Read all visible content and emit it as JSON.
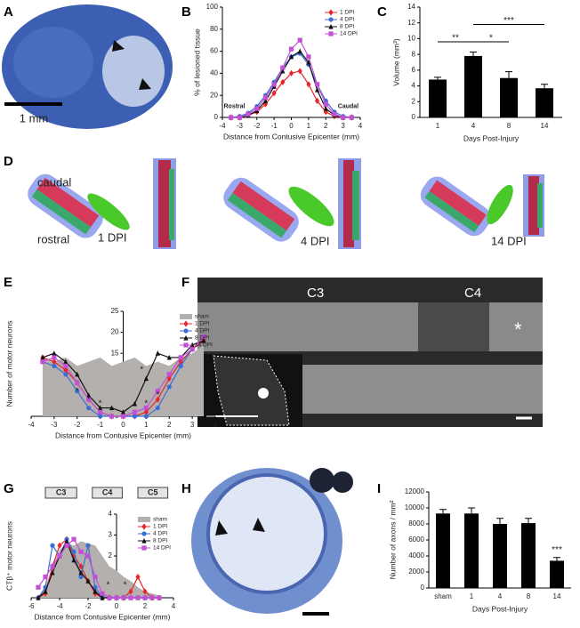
{
  "panels": [
    "A",
    "B",
    "C",
    "D",
    "E",
    "F",
    "G",
    "H",
    "I"
  ],
  "images": {
    "A": {
      "scale_bar": "1 mm"
    },
    "D": {
      "labels": [
        "caudal",
        "rostral",
        "1 DPI",
        "4 DPI",
        "14 DPI"
      ]
    },
    "F": {
      "labels": [
        "C3",
        "C4",
        "*"
      ]
    }
  },
  "chart_data": [
    {
      "type": "line",
      "xlabel": "Distance from Contusive Epicenter (mm)",
      "ylabel": "% of lesioned tissue",
      "x": [
        -3.5,
        -3,
        -2.5,
        -2,
        -1.5,
        -1,
        -0.5,
        0,
        0.5,
        1,
        1.5,
        2,
        2.5,
        3,
        3.5
      ],
      "xlim": [
        -4,
        4
      ],
      "xticks": [
        -4,
        -3,
        -2,
        -1,
        0,
        1,
        2,
        3,
        4
      ],
      "ylim": [
        0,
        100
      ],
      "yticks": [
        0,
        20,
        40,
        60,
        80,
        100
      ],
      "legend": "upper right",
      "series": [
        {
          "name": "1 DPI",
          "color": "#e8262a",
          "marker": "diamond",
          "values": [
            0,
            0,
            2,
            5,
            12,
            22,
            32,
            40,
            42,
            30,
            15,
            5,
            1,
            0,
            0
          ]
        },
        {
          "name": "4 DPI",
          "color": "#3b6fd8",
          "marker": "circle",
          "values": [
            0,
            1,
            4,
            10,
            20,
            32,
            45,
            55,
            58,
            48,
            30,
            15,
            5,
            1,
            0
          ]
        },
        {
          "name": "8 DPI",
          "color": "#111111",
          "marker": "triangle",
          "values": [
            0,
            0,
            2,
            6,
            15,
            28,
            42,
            55,
            60,
            50,
            25,
            8,
            2,
            0,
            0
          ]
        },
        {
          "name": "14 DPI",
          "color": "#c34fd6",
          "marker": "square",
          "values": [
            0,
            0,
            3,
            8,
            18,
            30,
            45,
            62,
            70,
            55,
            30,
            12,
            3,
            0,
            0
          ]
        }
      ],
      "annotations": [
        {
          "text": "Rostral",
          "x": -3.3,
          "y": 10
        },
        {
          "text": "Caudal",
          "x": 3.3,
          "y": 10
        }
      ]
    },
    {
      "type": "bar",
      "xlabel": "Days Post-Injury",
      "ylabel": "Volume (mm³)",
      "color": "#000000",
      "categories": [
        "1",
        "4",
        "8",
        "14"
      ],
      "values": [
        4.8,
        7.8,
        5.0,
        3.7
      ],
      "errors": [
        0.3,
        0.5,
        0.8,
        0.5
      ],
      "ylim": [
        0,
        14
      ],
      "yticks": [
        0,
        2,
        4,
        6,
        8,
        10,
        12,
        14
      ],
      "brackets": [
        {
          "text": "**",
          "from": "1",
          "to": "4",
          "y": 9.6
        },
        {
          "text": "*",
          "from": "4",
          "to": "8",
          "y": 9.6
        },
        {
          "text": "***",
          "from": "4",
          "to": "14",
          "y": 11.8
        }
      ]
    },
    {
      "type": "line",
      "xlabel": "Distance from Contusive Epicenter (mm)",
      "ylabel": "Number of motor neurons",
      "yaxis_at": 0,
      "x": [
        -3.5,
        -3,
        -2.5,
        -2,
        -1.5,
        -1,
        -0.5,
        0,
        0.5,
        1,
        1.5,
        2,
        2.5,
        3,
        3.5
      ],
      "xlim": [
        -4,
        4
      ],
      "xticks": [
        -4,
        -3,
        -2,
        -1,
        0,
        1,
        2,
        3,
        4
      ],
      "ylim": [
        0,
        25
      ],
      "yticks": [
        0,
        5,
        10,
        15,
        20,
        25
      ],
      "legend": "upper right",
      "series": [
        {
          "name": "sham",
          "color": "#b3b0ad",
          "fill": true,
          "marker": "none",
          "values": [
            14,
            13,
            14,
            12,
            13,
            14,
            12,
            13,
            14,
            12,
            13,
            12,
            14,
            15,
            17
          ]
        },
        {
          "name": "1 DPI",
          "color": "#e8262a",
          "marker": "diamond",
          "values": [
            14,
            13,
            11,
            8,
            4,
            1,
            0,
            0,
            0,
            1,
            4,
            9,
            13,
            16,
            18
          ]
        },
        {
          "name": "4 DPI",
          "color": "#3b6fd8",
          "marker": "circle",
          "values": [
            13,
            12,
            10,
            6,
            2,
            0,
            0,
            0,
            0,
            0,
            2,
            7,
            12,
            16,
            19
          ]
        },
        {
          "name": "8 DPI",
          "color": "#111111",
          "marker": "triangle",
          "values": [
            14,
            15,
            13,
            10,
            5,
            2,
            2,
            1,
            3,
            9,
            15,
            14,
            14,
            17,
            18
          ]
        },
        {
          "name": "14 DPI",
          "color": "#c34fd6",
          "marker": "square",
          "values": [
            13,
            14,
            12,
            8,
            4,
            1,
            0,
            0,
            1,
            2,
            6,
            10,
            14,
            16,
            19
          ]
        }
      ],
      "annotations": [
        {
          "text": "*",
          "x": -2,
          "y": 6
        },
        {
          "text": "*",
          "x": -1.5,
          "y": 4
        },
        {
          "text": "*",
          "x": -1,
          "y": 3
        },
        {
          "text": "*",
          "x": 1,
          "y": 3
        },
        {
          "text": "*",
          "x": 1.5,
          "y": 5
        },
        {
          "text": "*",
          "x": 0.8,
          "y": 11
        }
      ]
    },
    {
      "type": "line",
      "ylabel": "CTβ⁺ motor neurons",
      "xlabel": "Distance from Contusive Epicenter (mm)",
      "yaxis_at": 0,
      "x": [
        -5.5,
        -5,
        -4.5,
        -4,
        -3.5,
        -3,
        -2.5,
        -2,
        -1.5,
        -1,
        -0.5,
        0,
        0.5,
        1,
        1.5,
        2,
        2.5,
        3
      ],
      "xlim": [
        -6,
        4
      ],
      "xticks": [
        -6,
        -4,
        -2,
        0,
        2,
        4
      ],
      "ylim": [
        0,
        4
      ],
      "yticks": [
        0,
        1,
        2,
        3,
        4
      ],
      "legend": "upper right",
      "segments": [
        {
          "label": "C3",
          "from": -5,
          "to": -2.8
        },
        {
          "label": "C4",
          "from": -1.7,
          "to": 0.4
        },
        {
          "label": "C5",
          "from": 1.5,
          "to": 3.6
        }
      ],
      "series": [
        {
          "name": "sham",
          "color": "#b3b0ad",
          "fill": true,
          "marker": "none",
          "values": [
            0,
            0.5,
            1.5,
            2.3,
            2.6,
            2.5,
            2.7,
            2.6,
            2.5,
            2.0,
            1.5,
            1.3,
            1.0,
            0.8,
            0.5,
            0.3,
            0.2,
            0.1
          ]
        },
        {
          "name": "1 DPI",
          "color": "#e8262a",
          "marker": "diamond",
          "values": [
            0,
            0.2,
            1.5,
            2.5,
            2.8,
            2.0,
            1.5,
            0.8,
            0.2,
            0,
            0,
            0,
            0,
            0.3,
            1.0,
            0.3,
            0,
            0
          ]
        },
        {
          "name": "4 DPI",
          "color": "#3b6fd8",
          "marker": "circle",
          "values": [
            0,
            0.5,
            2.5,
            2.0,
            2.8,
            2.2,
            1.0,
            2.5,
            0.5,
            0,
            0,
            0,
            0,
            0,
            0,
            0,
            0,
            0
          ]
        },
        {
          "name": "8 DPI",
          "color": "#111111",
          "marker": "triangle",
          "values": [
            0,
            0.3,
            1.2,
            2.0,
            2.7,
            1.8,
            1.2,
            0.8,
            0.3,
            0,
            0,
            0,
            0,
            0,
            0,
            0,
            0,
            0
          ]
        },
        {
          "name": "14 DPI",
          "color": "#c34fd6",
          "marker": "square",
          "values": [
            0.5,
            1.0,
            1.5,
            2.0,
            2.5,
            2.8,
            2.2,
            2.0,
            1.0,
            0.2,
            0,
            0,
            0,
            0,
            0,
            0,
            0,
            0
          ]
        }
      ],
      "annotations": [
        {
          "text": "*",
          "x": -0.6,
          "y": 0.6
        },
        {
          "text": "*",
          "x": 0.6,
          "y": 0.6
        }
      ]
    },
    {
      "type": "bar",
      "xlabel": "Days Post-Injury",
      "ylabel": "Number of axons / mm²",
      "color": "#000000",
      "categories": [
        "sham",
        "1",
        "4",
        "8",
        "14"
      ],
      "values": [
        9300,
        9300,
        8000,
        8100,
        3400
      ],
      "errors": [
        500,
        700,
        700,
        600,
        400
      ],
      "ylim": [
        0,
        12000
      ],
      "yticks": [
        0,
        2000,
        4000,
        6000,
        8000,
        10000,
        12000
      ],
      "brackets": [
        {
          "text": "***",
          "from": "14",
          "to": "14",
          "y": 4300
        }
      ]
    }
  ]
}
